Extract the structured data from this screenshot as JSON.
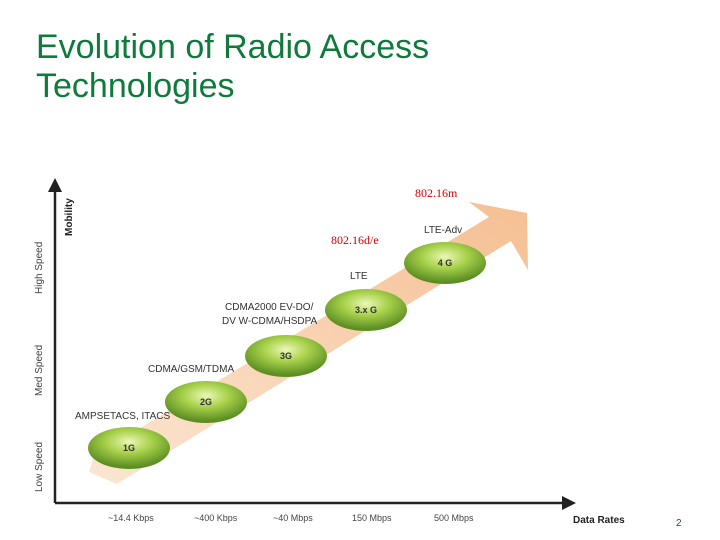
{
  "slide": {
    "title_line1": "Evolution of Radio Access",
    "title_line2": "Technologies",
    "page_number": "2"
  },
  "colors": {
    "title": "#0f7a3c",
    "arrow": "#f7c9a3",
    "circle_green": "#8fc43c",
    "circle_dark": "#5c8f22",
    "axis": "#222222",
    "red_label": "#cc0000"
  },
  "axes": {
    "y_title": "Mobility",
    "y_levels": [
      "Low Speed",
      "Med Speed",
      "High Speed"
    ],
    "x_title": "Data Rates",
    "x_ticks": [
      "~14.4 Kbps",
      "~400 Kbps",
      "~40 Mbps",
      "150 Mbps",
      "500 Mbps"
    ]
  },
  "generations": [
    {
      "circle": "1G",
      "tech_line1": "AMPSETACS, ITACS",
      "tech_line2": ""
    },
    {
      "circle": "2G",
      "tech_line1": "CDMA/GSM/TDMA",
      "tech_line2": ""
    },
    {
      "circle": "3G",
      "tech_line1": "CDMA2000 EV-DO/",
      "tech_line2": "DV W-CDMA/HSDPA"
    },
    {
      "circle": "3.x G",
      "tech_line1": "LTE",
      "tech_line2": ""
    },
    {
      "circle": "4 G",
      "tech_line1": "LTE-Adv",
      "tech_line2": ""
    }
  ],
  "annotations": {
    "label_1": "802.16d/e",
    "label_2": "802.16m"
  }
}
